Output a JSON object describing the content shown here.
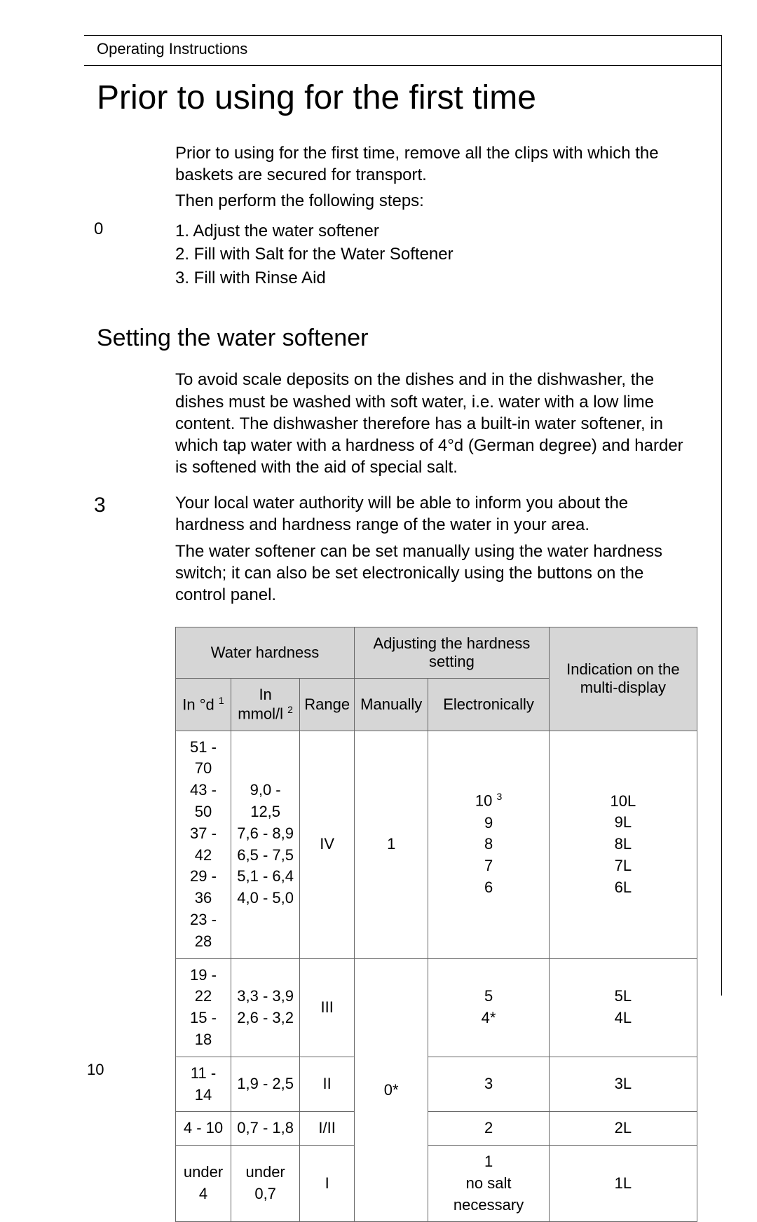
{
  "header": {
    "section_label": "Operating Instructions"
  },
  "title": "Prior to using for the first time",
  "intro": {
    "p1": "Prior to using for the first time, remove all the clips with which the baskets are secured for transport.",
    "p2": "Then perform the following steps:"
  },
  "steps": {
    "marker": "0",
    "s1": "1. Adjust the water softener",
    "s2": "2. Fill with Salt for the Water Softener",
    "s3": "3. Fill with Rinse Aid"
  },
  "subtitle": "Setting the water softener",
  "para1": "To avoid scale deposits on the dishes and in the dishwasher, the dishes must be washed with soft water, i.e. water with a low lime content. The dishwasher therefore has a built-in water softener, in which tap water with a hardness of 4°d (German degree) and harder is softened with the aid of special salt.",
  "note": {
    "marker": "3",
    "p1": "Your local water authority will be able to inform you about the hardness and hardness range of the water in your area.",
    "p2": "The water softener can be set manually using the water hardness switch; it can also be set electronically using the buttons on the control panel."
  },
  "table": {
    "headers": {
      "water_hardness": "Water hardness",
      "adjusting": "Adjusting the hardness setting",
      "indication": "Indication on the multi-display",
      "col_d": "In °d",
      "col_d_sup": "1",
      "col_mmol": "In mmol/l",
      "col_mmol_sup": "2",
      "col_range": "Range",
      "col_manual": "Manually",
      "col_elec": "Electronically"
    },
    "rows": {
      "r1_d": "51 - 70\n43 - 50\n37 - 42\n29 - 36\n23 - 28",
      "r1_mmol": "9,0 - 12,5\n7,6 - 8,9\n6,5 - 7,5\n5,1 - 6,4\n4,0 - 5,0",
      "r1_range": "IV",
      "r1_manual": "1",
      "r1_elec_top": "10",
      "r1_elec_top_sup": "3",
      "r1_elec_rest": "9\n8\n7\n6",
      "r1_ind": "10L\n9L\n8L\n7L\n6L",
      "r2_d": "19 - 22\n15 - 18",
      "r2_mmol": "3,3 - 3,9\n2,6 - 3,2",
      "r2_range": "III",
      "r2_elec": "5\n4*",
      "r2_ind": "5L\n4L",
      "r_manual_rest": "0*",
      "r3_d": "11 - 14",
      "r3_mmol": "1,9 - 2,5",
      "r3_range": "II",
      "r3_elec": "3",
      "r3_ind": "3L",
      "r4_d": "4 - 10",
      "r4_mmol": "0,7 - 1,8",
      "r4_range": "I/II",
      "r4_elec": "2",
      "r4_ind": "2L",
      "r5_d": "under 4",
      "r5_mmol": "under 0,7",
      "r5_range": "I",
      "r5_elec": "1\nno salt necessary",
      "r5_ind": "1L"
    }
  },
  "page_number": "10"
}
